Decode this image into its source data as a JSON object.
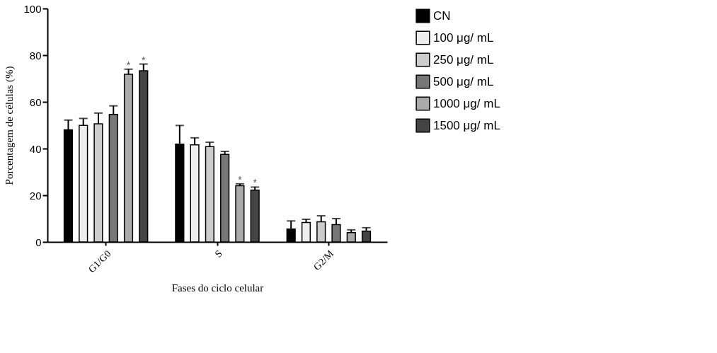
{
  "chart_data": {
    "type": "bar",
    "xlabel": "Fases do ciclo celular",
    "ylabel": "Porcentagem de células (%)",
    "categories": [
      "G1/G0",
      "S",
      "G2/M"
    ],
    "series": [
      {
        "name": "CN",
        "color": "#000000",
        "values": [
          48.0,
          41.9,
          5.5
        ],
        "errors": [
          4.2,
          8.0,
          3.5
        ]
      },
      {
        "name": "100 μg/ mL",
        "color": "#eeeeee",
        "values": [
          49.9,
          41.6,
          8.3
        ],
        "errors": [
          3.0,
          3.0,
          1.4
        ]
      },
      {
        "name": "250 μg/ mL",
        "color": "#cccccc",
        "values": [
          50.6,
          40.8,
          8.6
        ],
        "errors": [
          4.6,
          1.9,
          2.6
        ]
      },
      {
        "name": "500 μg/ mL",
        "color": "#777777",
        "values": [
          54.6,
          37.5,
          7.4
        ],
        "errors": [
          3.7,
          1.3,
          2.6
        ]
      },
      {
        "name": "1000 μg/ mL",
        "color": "#aaaaaa",
        "values": [
          71.8,
          24.1,
          4.0
        ],
        "errors": [
          2.2,
          0.8,
          1.2
        ],
        "value_labels": [
          "*",
          "*",
          null
        ]
      },
      {
        "name": "1500 μg/ mL",
        "color": "#444444",
        "values": [
          73.3,
          22.2,
          4.6
        ],
        "errors": [
          2.9,
          1.3,
          1.5
        ],
        "value_labels": [
          "*",
          "*",
          null
        ]
      }
    ],
    "ylim": [
      0,
      100
    ],
    "yticks": [
      0,
      20,
      40,
      60,
      80,
      100
    ],
    "grid": false,
    "legend": "top right"
  }
}
